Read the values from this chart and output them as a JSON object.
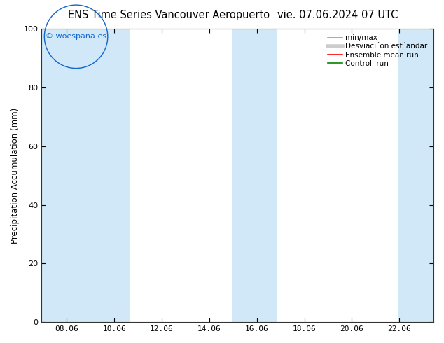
{
  "title_left": "ENS Time Series Vancouver Aeropuerto",
  "title_right": "vie. 07.06.2024 07 UTC",
  "ylabel": "Precipitation Accumulation (mm)",
  "ylim": [
    0,
    100
  ],
  "xlim": [
    7.0,
    23.5
  ],
  "xtick_positions": [
    8.06,
    10.06,
    12.06,
    14.06,
    16.06,
    18.06,
    20.06,
    22.06
  ],
  "xtick_labels": [
    "08.06",
    "10.06",
    "12.06",
    "14.06",
    "16.06",
    "18.06",
    "20.06",
    "22.06"
  ],
  "yticks": [
    0,
    20,
    40,
    60,
    80,
    100
  ],
  "background_color": "#ffffff",
  "plot_bg_color": "#ffffff",
  "shaded_bands": [
    {
      "xmin": 7.0,
      "xmax": 9.1,
      "color": "#d0e8f8"
    },
    {
      "xmin": 9.1,
      "xmax": 10.7,
      "color": "#d0e8f8"
    },
    {
      "xmin": 15.0,
      "xmax": 16.9,
      "color": "#d0e8f8"
    },
    {
      "xmin": 22.0,
      "xmax": 23.5,
      "color": "#d0e8f8"
    }
  ],
  "watermark_text": "© woespana.es",
  "watermark_color": "#1166cc",
  "legend_labels": [
    "min/max",
    "Desviaci´on est´andar",
    "Ensemble mean run",
    "Controll run"
  ],
  "legend_line_colors": [
    "#999999",
    "#cccccc",
    "#ff0000",
    "#008800"
  ],
  "spine_color": "#333333",
  "title_fontsize": 10.5,
  "axis_label_fontsize": 8.5,
  "tick_fontsize": 8,
  "legend_fontsize": 7.5
}
